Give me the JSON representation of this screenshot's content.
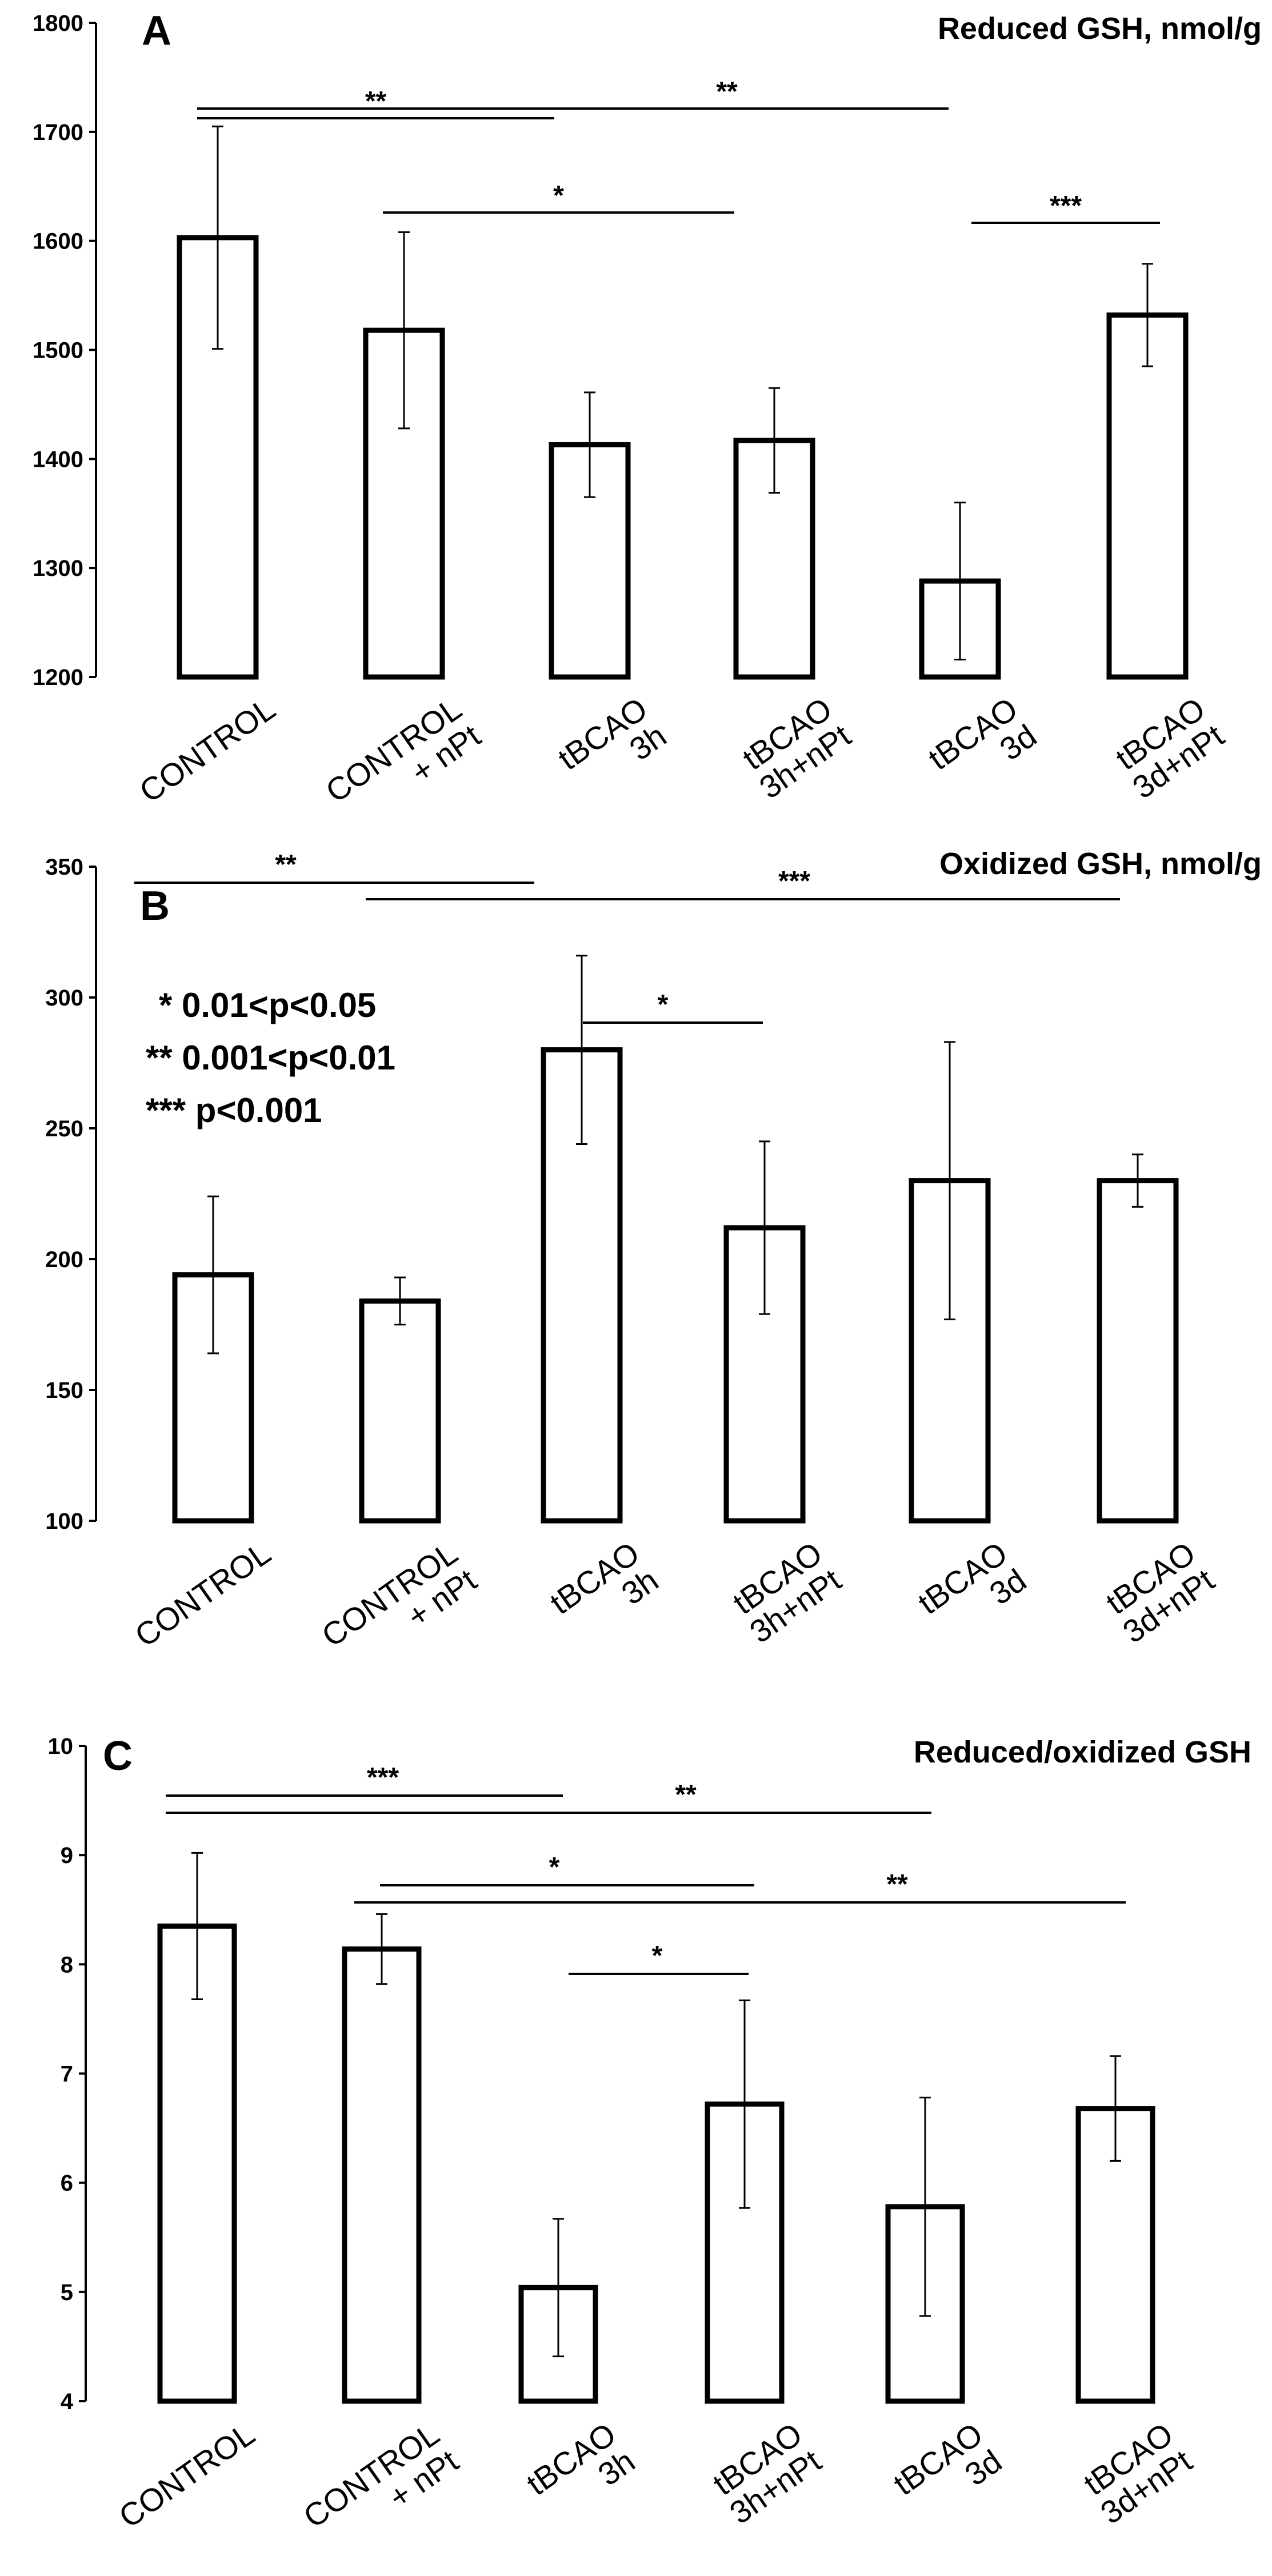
{
  "panels": [
    {
      "letter": "A",
      "chart_data": {
        "type": "bar",
        "title": "Reduced GSH, nmol/g",
        "ylim": [
          1200,
          1800
        ],
        "yticks": [
          "1200",
          "1300",
          "1400",
          "1500",
          "1600",
          "1700",
          "1800"
        ],
        "categories": [
          [
            "CONTROL"
          ],
          [
            "CONTROL",
            "+ nPt"
          ],
          [
            "tBCAO",
            "3h"
          ],
          [
            "tBCAO",
            "3h+nPt"
          ],
          [
            "tBCAO",
            "3d"
          ],
          [
            "tBCAO",
            "3d+nPt"
          ]
        ],
        "values": [
          1603,
          1518,
          1413,
          1417,
          1288,
          1532
        ],
        "errors": [
          102,
          90,
          48,
          48,
          72,
          47
        ],
        "significance": [
          {
            "from": 0,
            "to": 2,
            "label": "**",
            "level": 1
          },
          {
            "from": 0,
            "to": 4,
            "label": "**",
            "level": 0
          },
          {
            "from": 1,
            "to": 3,
            "label": "*",
            "level": 2
          },
          {
            "from": 4,
            "to": 5,
            "label": "***",
            "level": 2
          }
        ]
      }
    },
    {
      "letter": "B",
      "chart_data": {
        "type": "bar",
        "title": "Oxidized GSH, nmol/g",
        "ylim": [
          100,
          350
        ],
        "yticks": [
          "100",
          "150",
          "200",
          "250",
          "300",
          "350"
        ],
        "categories": [
          [
            "CONTROL"
          ],
          [
            "CONTROL",
            "+ nPt"
          ],
          [
            "tBCAO",
            "3h"
          ],
          [
            "tBCAO",
            "3h+nPt"
          ],
          [
            "tBCAO",
            "3d"
          ],
          [
            "tBCAO",
            "3d+nPt"
          ]
        ],
        "values": [
          194,
          184,
          280,
          212,
          230,
          230
        ],
        "errors": [
          30,
          9,
          36,
          33,
          53,
          10
        ],
        "significance": [
          {
            "from": 0,
            "to": 2,
            "label": "**",
            "level": 0
          },
          {
            "from": 1,
            "to": 5,
            "label": "***",
            "level": 1
          },
          {
            "from": 2,
            "to": 3,
            "label": "*",
            "level": 2
          }
        ]
      }
    },
    {
      "letter": "C",
      "chart_data": {
        "type": "bar",
        "title": "Reduced/oxidized GSH",
        "ylim": [
          4,
          10
        ],
        "yticks": [
          "4",
          "5",
          "6",
          "7",
          "8",
          "9",
          "10"
        ],
        "categories": [
          [
            "CONTROL"
          ],
          [
            "CONTROL",
            "+ nPt"
          ],
          [
            "tBCAO",
            "3h"
          ],
          [
            "tBCAO",
            "3h+nPt"
          ],
          [
            "tBCAO",
            "3d"
          ],
          [
            "tBCAO",
            "3d+nPt"
          ]
        ],
        "values": [
          8.35,
          8.14,
          5.04,
          6.72,
          5.78,
          6.68
        ],
        "errors": [
          0.67,
          0.32,
          0.63,
          0.95,
          1.0,
          0.48
        ],
        "significance": [
          {
            "from": 0,
            "to": 2,
            "label": "***",
            "level": 0
          },
          {
            "from": 0,
            "to": 4,
            "label": "**",
            "level": 1
          },
          {
            "from": 1,
            "to": 3,
            "label": "*",
            "level": 2
          },
          {
            "from": 1,
            "to": 5,
            "label": "**",
            "level": 3
          },
          {
            "from": 2,
            "to": 3,
            "label": "*",
            "level": 4
          }
        ]
      }
    }
  ],
  "legend": [
    "* 0.01<p<0.05",
    "** 0.001<p<0.01",
    "*** p<0.001"
  ]
}
